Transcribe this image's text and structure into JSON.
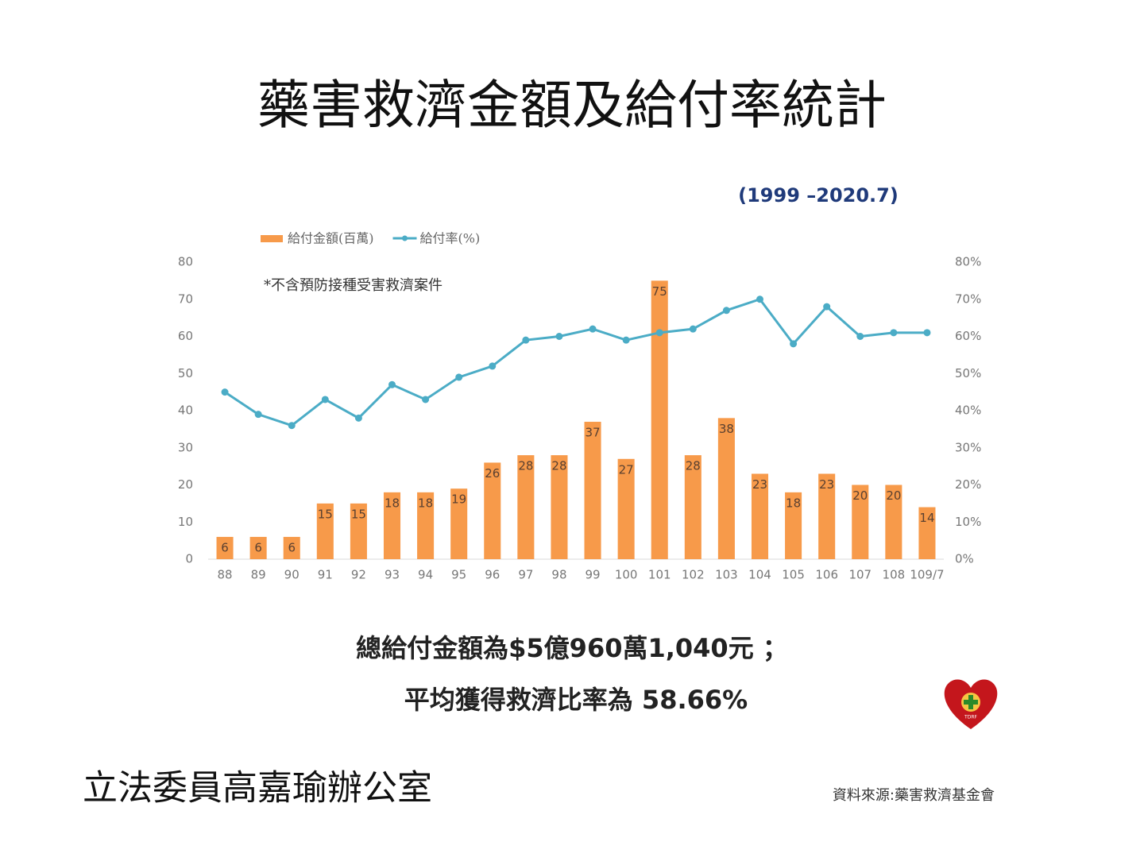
{
  "header": {
    "title": "藥害救濟金額及給付率統計",
    "subtitle": "(1999 –2020.7)"
  },
  "chart_data": {
    "type": "bar-line",
    "annotation": "*不含預防接種受害救濟案件",
    "legend": "top-left",
    "categories": [
      "88",
      "89",
      "90",
      "91",
      "92",
      "93",
      "94",
      "95",
      "96",
      "97",
      "98",
      "99",
      "100",
      "101",
      "102",
      "103",
      "104",
      "105",
      "106",
      "107",
      "108",
      "109/7"
    ],
    "series": [
      {
        "name": "給付金額(百萬)",
        "type": "bar",
        "color": "#f79a4a",
        "values": [
          6,
          6,
          6,
          15,
          15,
          18,
          18,
          19,
          26,
          28,
          28,
          37,
          27,
          75,
          28,
          38,
          23,
          18,
          23,
          20,
          20,
          14
        ]
      },
      {
        "name": "給付率(%)",
        "type": "line",
        "axis": "y2",
        "color": "#4bacc6",
        "values": [
          45,
          39,
          36,
          43,
          38,
          47,
          43,
          49,
          52,
          59,
          60,
          62,
          59,
          61,
          62,
          67,
          70,
          58,
          68,
          60,
          61,
          61
        ]
      }
    ],
    "ylim": [
      0,
      80
    ],
    "yticks": [
      0,
      10,
      20,
      30,
      40,
      50,
      60,
      70,
      80
    ],
    "y2lim": [
      0,
      80
    ],
    "y2ticks": [
      {
        "value": 0,
        "label": "0%"
      },
      {
        "value": 10,
        "label": "10%"
      },
      {
        "value": 20,
        "label": "20%"
      },
      {
        "value": 30,
        "label": "30%"
      },
      {
        "value": 40,
        "label": "40%"
      },
      {
        "value": 50,
        "label": "50%"
      },
      {
        "value": 60,
        "label": "60%"
      },
      {
        "value": 70,
        "label": "70%"
      },
      {
        "value": 80,
        "label": "80%"
      }
    ]
  },
  "summary": [
    "總給付金額為$5億960萬1,040元 ；",
    "平均獲得救濟比率為 58.66%"
  ],
  "logo": {
    "text": "TDRF"
  },
  "footer": {
    "office": "立法委員高嘉瑜辦公室",
    "source": "資料來源:藥害救濟基金會"
  }
}
